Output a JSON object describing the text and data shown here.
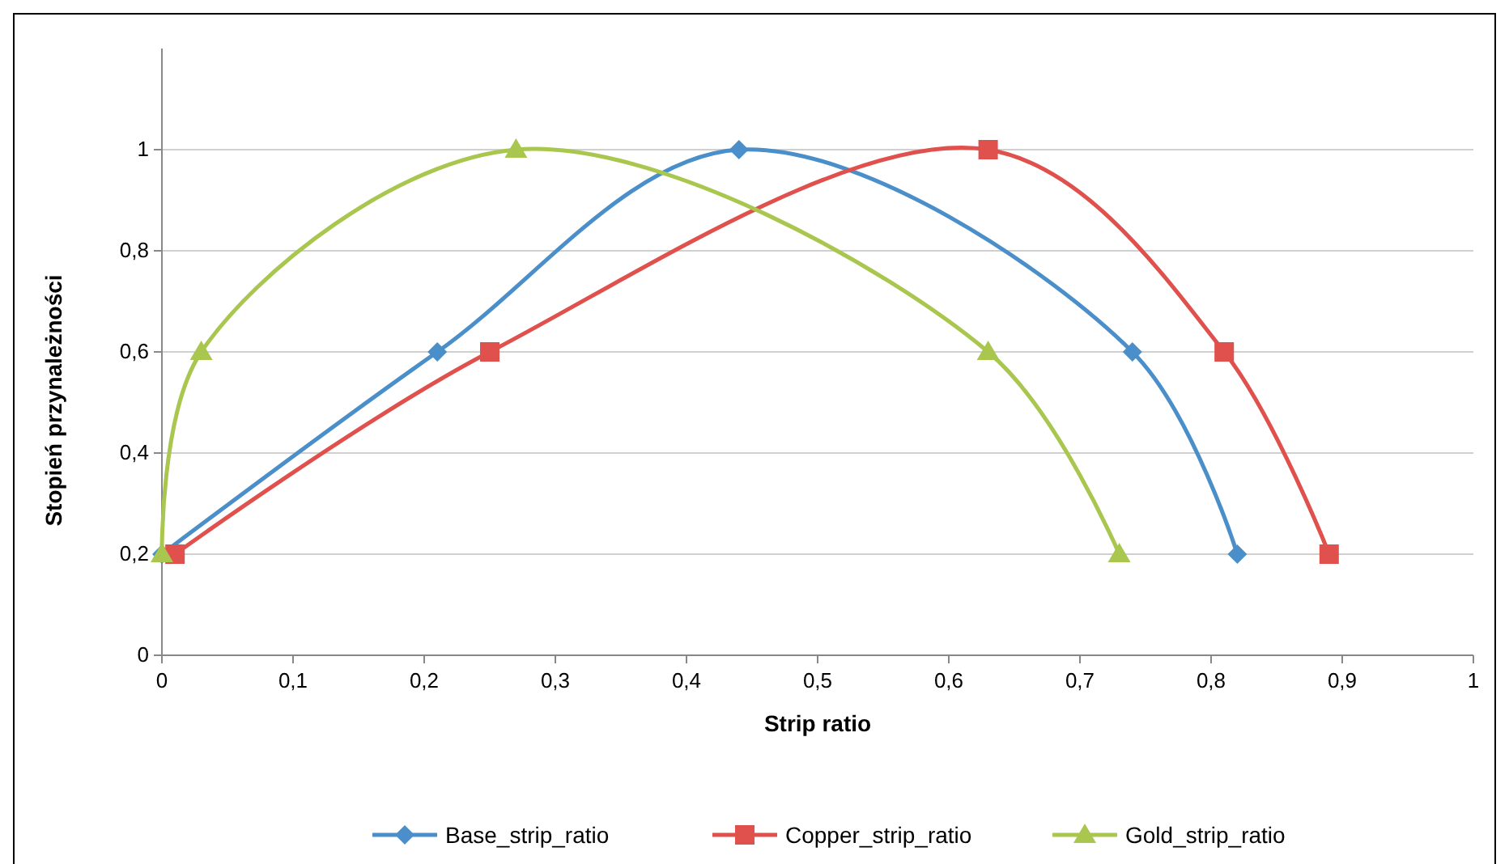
{
  "chart_data": {
    "type": "line",
    "xlabel": "Strip ratio",
    "ylabel": "Stopień przynależności",
    "xlim": [
      0,
      1
    ],
    "ylim": [
      0,
      1.2
    ],
    "xticks": [
      0,
      {
        "value": 0.1,
        "label": "0,1"
      },
      {
        "value": 0.2,
        "label": "0,2"
      },
      {
        "value": 0.3,
        "label": "0,3"
      },
      {
        "value": 0.4,
        "label": "0,4"
      },
      {
        "value": 0.5,
        "label": "0,5"
      },
      {
        "value": 0.6,
        "label": "0,6"
      },
      {
        "value": 0.7,
        "label": "0,7"
      },
      {
        "value": 0.8,
        "label": "0,8"
      },
      {
        "value": 0.9,
        "label": "0,9"
      },
      1
    ],
    "yticks": [
      0,
      {
        "value": 0.2,
        "label": "0,2"
      },
      {
        "value": 0.4,
        "label": "0,4"
      },
      {
        "value": 0.6,
        "label": "0,6"
      },
      {
        "value": 0.8,
        "label": "0,8"
      },
      1
    ],
    "grid": "y",
    "legend": "bottom",
    "line_style": "solid",
    "series": [
      {
        "name": "Base_strip_ratio",
        "color": "#4a8fc9",
        "marker": "diamond",
        "x": [
          0,
          0.21,
          0.44,
          0.74,
          0.82
        ],
        "values": [
          0.2,
          0.6,
          1,
          0.6,
          0.2
        ]
      },
      {
        "name": "Copper_strip_ratio",
        "color": "#e0504c",
        "marker": "square",
        "x": [
          0.01,
          0.25,
          0.63,
          0.81,
          0.89
        ],
        "values": [
          0.2,
          0.6,
          1,
          0.6,
          0.2
        ]
      },
      {
        "name": "Gold_strip_ratio",
        "color": "#a9c64f",
        "marker": "triangle",
        "x": [
          0,
          0.03,
          0.27,
          0.63,
          0.73
        ],
        "values": [
          0.2,
          0.6,
          1,
          0.6,
          0.2
        ]
      }
    ]
  }
}
